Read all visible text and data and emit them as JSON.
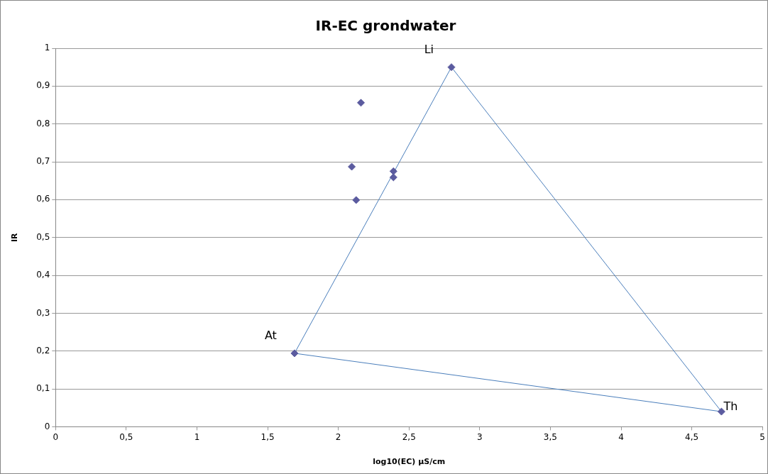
{
  "chart_data": {
    "type": "scatter",
    "title": "IR-EC grondwater",
    "xlabel": "log10(EC) µS/cm",
    "ylabel": "IR",
    "series": [
      {
        "type": "line",
        "color": "#4a7ebb",
        "marker": "none",
        "x": [
          1.69,
          2.8
        ],
        "values": [
          0.194,
          0.95
        ]
      },
      {
        "type": "line",
        "color": "#4a7ebb",
        "marker": "none",
        "x": [
          2.8,
          4.71
        ],
        "values": [
          0.95,
          0.04
        ]
      },
      {
        "type": "line",
        "color": "#4a7ebb",
        "marker": "none",
        "x": [
          1.69,
          4.71
        ],
        "values": [
          0.194,
          0.04
        ]
      },
      {
        "type": "scatter",
        "color": "#5b5b9f",
        "marker": "diamond",
        "x": [
          1.69,
          2.8,
          4.71,
          2.16,
          2.095,
          2.39,
          2.39,
          2.126
        ],
        "values": [
          0.194,
          0.95,
          0.04,
          0.856,
          0.687,
          0.675,
          0.659,
          0.599
        ]
      }
    ],
    "annotations": [
      {
        "text": "At",
        "x": 1.69,
        "y": 0.194
      },
      {
        "text": "Li",
        "x": 2.8,
        "y": 0.95
      },
      {
        "text": "Th",
        "x": 4.71,
        "y": 0.04
      }
    ],
    "xlim": [
      0,
      5
    ],
    "ylim": [
      0,
      1
    ],
    "xticks": [
      0,
      {
        "value": 0.5,
        "label": "0,5"
      },
      1,
      {
        "value": 1.5,
        "label": "1,5"
      },
      2,
      {
        "value": 2.5,
        "label": "2,5"
      },
      3,
      {
        "value": 3.5,
        "label": "3,5"
      },
      4,
      {
        "value": 4.5,
        "label": "4,5"
      },
      5
    ],
    "yticks": [
      0,
      {
        "value": 0.1,
        "label": "0,1"
      },
      {
        "value": 0.2,
        "label": "0,2"
      },
      {
        "value": 0.3,
        "label": "0,3"
      },
      {
        "value": 0.4,
        "label": "0,4"
      },
      {
        "value": 0.5,
        "label": "0,5"
      },
      {
        "value": 0.6,
        "label": "0,6"
      },
      {
        "value": 0.7,
        "label": "0,7"
      },
      {
        "value": 0.8,
        "label": "0,8"
      },
      {
        "value": 0.9,
        "label": "0,9"
      },
      1
    ],
    "grid": "y",
    "legend": false
  }
}
